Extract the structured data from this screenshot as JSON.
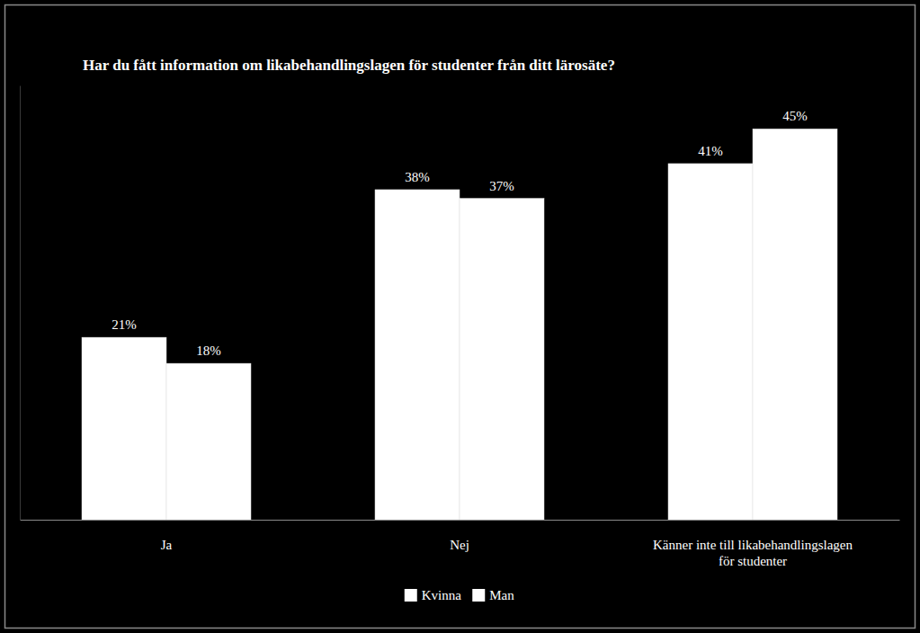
{
  "chart_data": {
    "type": "bar",
    "title": "Har du fått information om likabehandlingslagen för studenter från ditt lärosäte?",
    "categories": [
      "Ja",
      "Nej",
      "Känner inte till likabehandlingslagen för studenter"
    ],
    "series": [
      {
        "name": "Kvinna",
        "color": "#ffffff",
        "values": [
          21,
          38,
          41
        ],
        "value_labels": [
          "21%",
          "38%",
          "41%"
        ]
      },
      {
        "name": "Man",
        "color": "#ffffff",
        "values": [
          18,
          37,
          45
        ],
        "value_labels": [
          "18%",
          "37%",
          "45%"
        ]
      }
    ],
    "ylim": [
      0,
      50
    ],
    "data_labels": true,
    "tick_labels": "x",
    "legend": "bottom",
    "grid": false
  }
}
